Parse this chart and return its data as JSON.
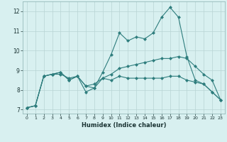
{
  "xlabel": "Humidex (Indice chaleur)",
  "x": [
    0,
    1,
    2,
    3,
    4,
    5,
    6,
    7,
    8,
    9,
    10,
    11,
    12,
    13,
    14,
    15,
    16,
    17,
    18,
    19,
    20,
    21,
    22,
    23
  ],
  "line1": [
    7.1,
    7.2,
    8.7,
    8.8,
    8.8,
    8.6,
    8.7,
    7.9,
    8.1,
    8.9,
    9.8,
    10.9,
    10.5,
    10.7,
    10.6,
    10.9,
    11.7,
    12.2,
    11.7,
    9.7,
    8.5,
    8.3,
    7.9,
    7.5
  ],
  "line2": [
    7.1,
    7.2,
    8.7,
    8.8,
    8.9,
    8.5,
    8.7,
    8.2,
    8.1,
    8.6,
    8.8,
    9.1,
    9.2,
    9.3,
    9.4,
    9.5,
    9.6,
    9.6,
    9.7,
    9.6,
    9.2,
    8.8,
    8.5,
    7.5
  ],
  "line3": [
    7.1,
    7.2,
    8.7,
    8.8,
    8.9,
    8.5,
    8.7,
    8.2,
    8.3,
    8.6,
    8.5,
    8.7,
    8.6,
    8.6,
    8.6,
    8.6,
    8.6,
    8.7,
    8.7,
    8.5,
    8.4,
    8.3,
    7.9,
    7.5
  ],
  "line_color": "#2e7d7d",
  "bg_color": "#d8f0f0",
  "grid_color": "#b8d4d4",
  "ylim": [
    6.8,
    12.5
  ],
  "xlim": [
    -0.5,
    23.5
  ]
}
